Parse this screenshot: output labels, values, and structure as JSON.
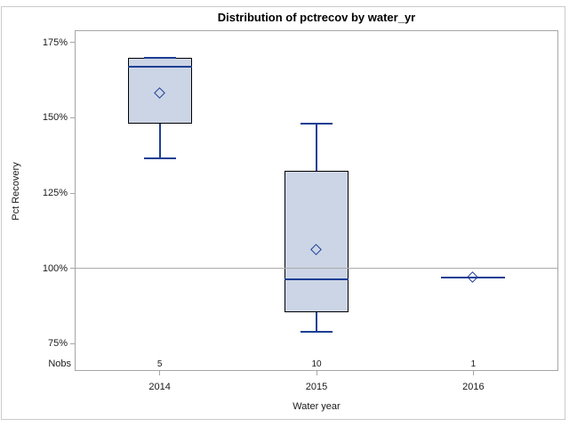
{
  "chart_data": {
    "type": "box",
    "title": "Distribution of pctrecov by water_yr",
    "xlabel": "Water year",
    "ylabel": "Pct Recovery",
    "categories": [
      "2014",
      "2015",
      "2016"
    ],
    "nobs_label": "Nobs",
    "yticks": [
      175,
      150,
      125,
      100,
      75
    ],
    "ytick_suffix": "%",
    "ylim": [
      66,
      179
    ],
    "refline": 100,
    "grid": false,
    "legend": "none",
    "series": [
      {
        "category": "2014",
        "n": 5,
        "whisker_low": 136.5,
        "q1": 148,
        "median": 167,
        "q3": 170,
        "whisker_high": 170,
        "mean": 158
      },
      {
        "category": "2015",
        "n": 10,
        "whisker_low": 79,
        "q1": 85.5,
        "median": 96.5,
        "q3": 132.5,
        "whisker_high": 148,
        "mean": 106
      },
      {
        "category": "2016",
        "n": 1,
        "whisker_low": 97,
        "q1": 97,
        "median": 97,
        "q3": 97,
        "whisker_high": 97,
        "mean": 97
      }
    ]
  },
  "colors": {
    "box_fill": "#ccd5e6",
    "box_border": "#000000",
    "line_blue": "#1c3f94",
    "frame": "#a6a6a6",
    "refline": "#ababab",
    "outer_border": "#c9cbcd",
    "text": "#1a1a1a"
  }
}
